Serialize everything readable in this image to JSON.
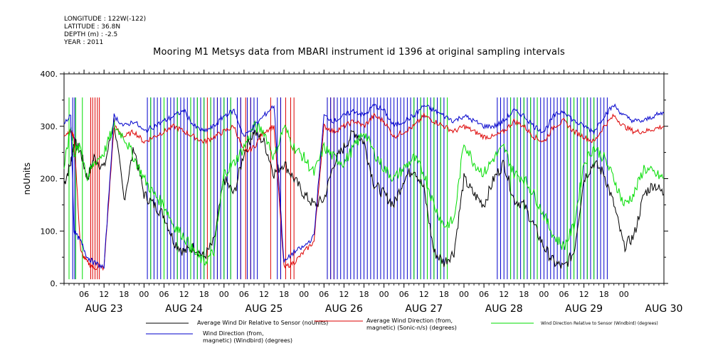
{
  "header": {
    "longitude": "LONGITUDE : 122W(-122)",
    "latitude": "LATITUDE : 36.8N",
    "depth": "DEPTH (m) : -2.5",
    "year": "YEAR : 2011",
    "title": "Mooring M1 Metsys data from MBARI instrument id 1396 at original sampling intervals"
  },
  "chart_data": {
    "type": "line",
    "title": "Mooring M1 Metsys data from MBARI instrument id 1396 at original sampling intervals",
    "ylabel": "noUnits",
    "ylim": [
      0,
      400
    ],
    "yticks": [
      "0.",
      "100.",
      "200.",
      "300.",
      "400."
    ],
    "xlim_hours": [
      0,
      180
    ],
    "hour_ticks": [
      "06",
      "12",
      "18",
      "00",
      "06",
      "12",
      "18",
      "00",
      "06",
      "12",
      "18",
      "00",
      "06",
      "12",
      "18",
      "00",
      "06",
      "12",
      "18",
      "00",
      "06",
      "12",
      "18",
      "00",
      "06",
      "12",
      "18",
      "00"
    ],
    "date_labels": [
      "AUG 23",
      "AUG 24",
      "AUG 25",
      "AUG 26",
      "AUG 27",
      "AUG 28",
      "AUG 29",
      "AUG 30"
    ],
    "colors": {
      "black": "#000000",
      "red": "#dd0000",
      "green": "#00dd00",
      "blue": "#0000cc"
    },
    "series": [
      {
        "name": "Average Wind Dir Relative to Sensor (noUnits)",
        "color": "#000000",
        "x": [
          0,
          2,
          3,
          5,
          7,
          9,
          12,
          15,
          18,
          21,
          24,
          27,
          30,
          33,
          36,
          39,
          42,
          45,
          48,
          51,
          54,
          57,
          60,
          63,
          66,
          69,
          72,
          75,
          78,
          81,
          84,
          87,
          90,
          93,
          96,
          99,
          102,
          105,
          108,
          111,
          114,
          117,
          120,
          123,
          126,
          129,
          132,
          135,
          138,
          141,
          144,
          147,
          150,
          153,
          156,
          159,
          162,
          165,
          168,
          171,
          174,
          177,
          180
        ],
        "values": [
          190,
          230,
          270,
          250,
          200,
          240,
          220,
          310,
          160,
          260,
          170,
          150,
          130,
          80,
          60,
          70,
          50,
          80,
          200,
          170,
          250,
          290,
          270,
          210,
          230,
          200,
          170,
          150,
          160,
          230,
          260,
          290,
          270,
          190,
          170,
          150,
          200,
          220,
          180,
          60,
          40,
          60,
          200,
          170,
          150,
          200,
          230,
          160,
          150,
          110,
          70,
          40,
          30,
          60,
          200,
          230,
          210,
          150,
          70,
          90,
          170,
          190,
          170
        ]
      },
      {
        "name": "Average Wind Direction (from, magnetic) (Sonic-n/s) (degrees)",
        "color": "#dd0000",
        "x": [
          0,
          2,
          3,
          5,
          7,
          9,
          12,
          15,
          18,
          21,
          24,
          27,
          30,
          33,
          36,
          39,
          42,
          45,
          48,
          51,
          54,
          57,
          60,
          63,
          66,
          69,
          72,
          75,
          78,
          81,
          84,
          87,
          90,
          93,
          96,
          99,
          102,
          105,
          108,
          111,
          114,
          117,
          120,
          123,
          126,
          129,
          132,
          135,
          138,
          141,
          144,
          147,
          150,
          153,
          156,
          159,
          162,
          165,
          168,
          171,
          174,
          177,
          180
        ],
        "values": [
          285,
          290,
          280,
          60,
          40,
          30,
          30,
          300,
          280,
          290,
          270,
          280,
          290,
          300,
          290,
          280,
          270,
          280,
          290,
          300,
          250,
          260,
          290,
          300,
          30,
          40,
          60,
          80,
          300,
          290,
          300,
          310,
          300,
          320,
          310,
          280,
          290,
          300,
          320,
          310,
          300,
          290,
          300,
          290,
          280,
          280,
          290,
          310,
          300,
          280,
          270,
          300,
          310,
          290,
          280,
          270,
          300,
          320,
          300,
          290,
          290,
          295,
          300
        ]
      },
      {
        "name": "Wind Direction Relative to Sensor (Windbird) (degrees)",
        "color": "#00dd00",
        "x": [
          0,
          2,
          3,
          5,
          7,
          9,
          12,
          15,
          18,
          21,
          24,
          27,
          30,
          33,
          36,
          39,
          42,
          45,
          48,
          51,
          54,
          57,
          60,
          63,
          66,
          69,
          72,
          75,
          78,
          81,
          84,
          87,
          90,
          93,
          96,
          99,
          102,
          105,
          108,
          111,
          114,
          117,
          120,
          123,
          126,
          129,
          132,
          135,
          138,
          141,
          144,
          147,
          150,
          153,
          156,
          159,
          162,
          165,
          168,
          171,
          174,
          177,
          180
        ],
        "values": [
          220,
          300,
          250,
          260,
          200,
          230,
          250,
          300,
          280,
          240,
          200,
          170,
          150,
          110,
          90,
          60,
          40,
          60,
          210,
          230,
          260,
          300,
          290,
          240,
          300,
          260,
          240,
          210,
          260,
          240,
          230,
          260,
          290,
          250,
          220,
          200,
          220,
          240,
          210,
          150,
          110,
          120,
          270,
          230,
          210,
          240,
          260,
          210,
          200,
          170,
          130,
          90,
          70,
          110,
          230,
          260,
          240,
          200,
          150,
          170,
          220,
          210,
          200
        ]
      },
      {
        "name": "Wind Direction (from, magnetic) (Windbird) (degrees)",
        "color": "#0000cc",
        "x": [
          0,
          2,
          3,
          5,
          7,
          9,
          12,
          15,
          18,
          21,
          24,
          27,
          30,
          33,
          36,
          39,
          42,
          45,
          48,
          51,
          54,
          57,
          60,
          63,
          66,
          69,
          72,
          75,
          78,
          81,
          84,
          87,
          90,
          93,
          96,
          99,
          102,
          105,
          108,
          111,
          114,
          117,
          120,
          123,
          126,
          129,
          132,
          135,
          138,
          141,
          144,
          147,
          150,
          153,
          156,
          159,
          162,
          165,
          168,
          171,
          174,
          177,
          180
        ],
        "values": [
          305,
          320,
          100,
          80,
          50,
          40,
          30,
          320,
          300,
          310,
          290,
          300,
          310,
          320,
          330,
          300,
          290,
          300,
          320,
          330,
          280,
          300,
          320,
          340,
          40,
          60,
          70,
          90,
          320,
          310,
          320,
          330,
          320,
          340,
          330,
          300,
          310,
          320,
          340,
          330,
          320,
          310,
          320,
          310,
          300,
          300,
          310,
          330,
          320,
          300,
          290,
          320,
          330,
          310,
          300,
          290,
          320,
          340,
          320,
          310,
          310,
          320,
          325
        ]
      }
    ],
    "vertical_spikes": [
      {
        "color": "#dd0000",
        "x": [
          8,
          8.6,
          9.3,
          10,
          10.6,
          43,
          44,
          46,
          53,
          54.5,
          56,
          62,
          65,
          66.5,
          68,
          69,
          79,
          80,
          81
        ]
      },
      {
        "color": "#0000cc",
        "x": [
          2.6,
          3.2,
          25,
          26,
          27,
          28,
          29,
          30,
          31,
          32,
          33,
          34,
          35,
          36,
          37,
          38,
          39,
          40,
          41,
          42,
          44,
          45,
          46,
          47,
          48,
          49,
          50,
          52,
          53,
          55,
          56,
          57,
          58,
          64,
          65,
          79,
          80,
          81,
          82,
          83,
          84,
          85,
          86,
          87,
          88,
          89,
          90,
          91,
          92,
          93,
          94,
          95,
          96,
          97,
          98,
          99,
          100,
          101,
          102,
          103,
          104,
          105,
          106,
          107,
          108,
          109,
          110,
          111,
          112,
          113,
          114,
          130,
          131,
          132,
          133,
          134,
          135,
          136,
          137,
          138,
          139,
          140,
          141,
          142,
          143,
          144,
          145,
          146,
          147,
          148,
          149,
          150,
          151,
          152,
          153,
          154,
          155,
          156,
          157,
          158,
          159,
          160,
          161,
          162,
          163
        ]
      },
      {
        "color": "#00dd00",
        "x": [
          1.5,
          3.5,
          5.5,
          26,
          30,
          34,
          38,
          40,
          42,
          44,
          48,
          50,
          105,
          107,
          109,
          111,
          113,
          115,
          134,
          136,
          138,
          140,
          142,
          151,
          153,
          155,
          157,
          159
        ]
      }
    ],
    "legend": [
      {
        "label": "Average Wind Dir Relative to Sensor (noUnits)",
        "color": "#000000"
      },
      {
        "label": "Average Wind Direction (from,\nmagnetic) (Sonic-n/s) (degrees)",
        "color": "#dd0000"
      },
      {
        "label": "Wind Direction Relative to Sensor (Windbird) (degrees)",
        "color": "#00dd00"
      },
      {
        "label": "Wind Direction (from,\nmagnetic) (Windbird) (degrees)",
        "color": "#0000cc"
      }
    ],
    "grid": false,
    "legend_placement": "bottom"
  }
}
